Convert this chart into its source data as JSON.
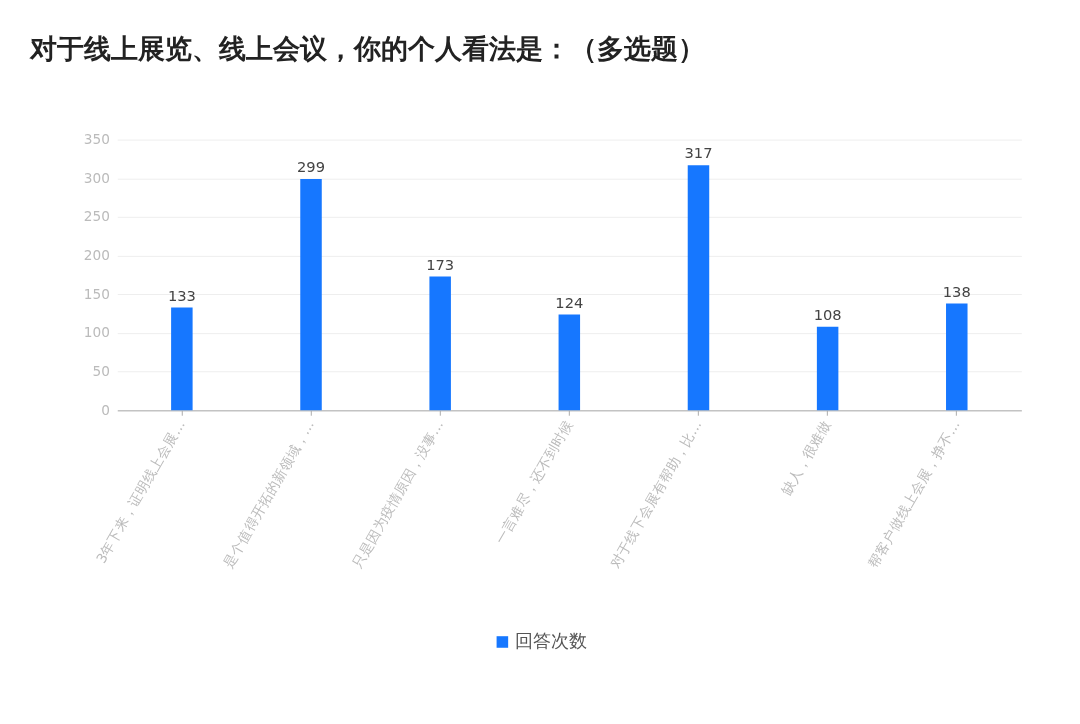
{
  "chart_data": {
    "type": "bar",
    "title": "对于线上展览、线上会议，你的个人看法是：（多选题）",
    "categories": [
      "3年下来，证明线上会展…",
      "是个值得开拓的新领域，…",
      "只是因为疫情原因，没事…",
      "一言难尽，还不到时候",
      "对于线下会展有帮助，比…",
      "缺人，很难做",
      "帮客户做线上会展，挣不…"
    ],
    "series": [
      {
        "name": "回答次数",
        "color": "#1677ff",
        "values": [
          133,
          299,
          173,
          124,
          317,
          108,
          138
        ]
      }
    ],
    "ylim": [
      0,
      350
    ],
    "yticks": [
      0,
      50,
      100,
      150,
      200,
      250,
      300,
      350
    ],
    "grid": "y",
    "legend": "bottom",
    "data_labels": true
  }
}
